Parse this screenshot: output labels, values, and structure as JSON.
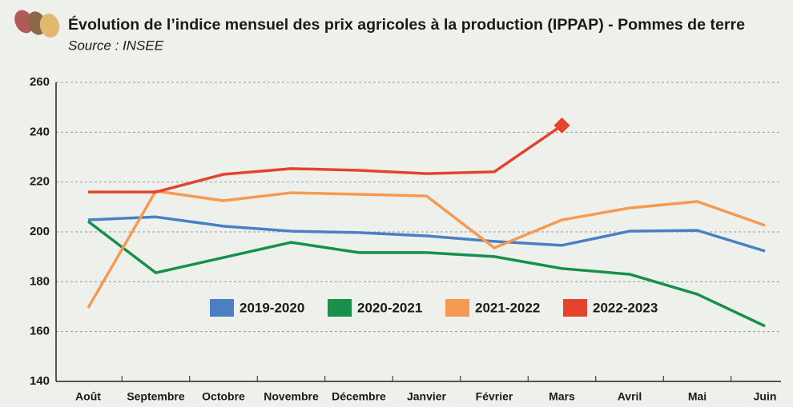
{
  "chart_data": {
    "type": "line",
    "title": "Évolution de l’indice mensuel des prix agricoles à la production (IPPAP) - Pommes de terre",
    "subtitle": "Source : INSEE",
    "categories": [
      "Août",
      "Septembre",
      "Octobre",
      "Novembre",
      "Décembre",
      "Janvier",
      "Février",
      "Mars",
      "Avril",
      "Mai",
      "Juin"
    ],
    "series": [
      {
        "name": "2019-2020",
        "color": "#4a7fc4",
        "values": [
          204.8,
          206,
          202.3,
          200.3,
          199.7,
          198.4,
          196.2,
          194.6,
          200.3,
          200.6,
          192.3
        ]
      },
      {
        "name": "2020-2021",
        "color": "#16904a",
        "values": [
          204.2,
          183.6,
          189.7,
          195.8,
          191.7,
          191.7,
          190.1,
          185.3,
          183,
          175,
          162.2
        ]
      },
      {
        "name": "2021-2022",
        "color": "#f59a52",
        "values": [
          169.5,
          216.4,
          212.5,
          215.7,
          215.1,
          214.4,
          193.6,
          204.8,
          209.6,
          212.2,
          202.6
        ]
      },
      {
        "name": "2022-2023",
        "color": "#e4432d",
        "values": [
          216,
          216,
          223.1,
          225.4,
          224.7,
          223.4,
          224.1,
          242.7,
          null,
          null,
          null
        ]
      }
    ],
    "ylim": [
      140,
      260
    ],
    "yticks": [
      140,
      160,
      180,
      200,
      220,
      240,
      260
    ],
    "grid": true
  }
}
